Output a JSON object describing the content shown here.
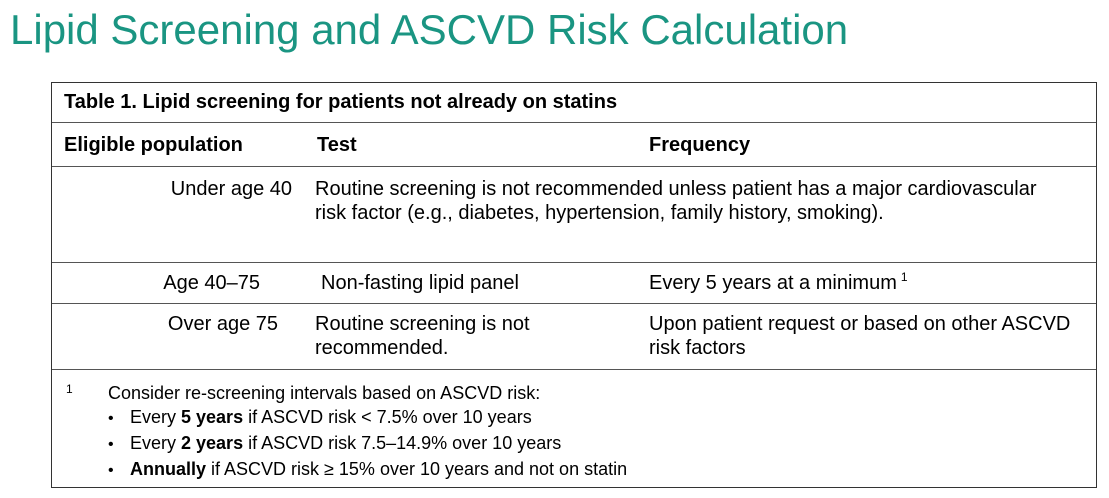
{
  "page": {
    "title": "Lipid Screening and ASCVD Risk Calculation",
    "title_color": "#1a9582"
  },
  "table": {
    "caption": "Table 1. Lipid screening for patients not already on statins",
    "headers": {
      "population": "Eligible population",
      "test": "Test",
      "frequency": "Frequency"
    },
    "rows": [
      {
        "population": "Under age 40",
        "test": "Routine screening is not recommended unless patient has a major cardiovascular risk factor (e.g., diabetes, hypertension, family history, smoking).",
        "frequency": ""
      },
      {
        "population": "Age 40–75",
        "test": "Non-fasting lipid panel",
        "frequency": "Every 5 years at a minimum",
        "frequency_note": "1"
      },
      {
        "population": "Over age 75",
        "test": "Routine screening is not recommended.",
        "frequency": "Upon patient request or based on other ASCVD risk factors"
      }
    ],
    "footnote": {
      "marker": "1",
      "intro": "Consider re-screening intervals based on ASCVD risk:",
      "bullet_symbol": "•",
      "items": [
        {
          "prefix": "Every ",
          "bold": "5 years",
          "suffix": " if ASCVD risk < 7.5% over 10 years"
        },
        {
          "prefix": "Every ",
          "bold": "2 years",
          "suffix": " if ASCVD risk 7.5–14.9% over 10 years"
        },
        {
          "prefix": "",
          "bold": "Annually",
          "suffix": " if ASCVD risk ≥ 15% over 10 years and not on statin"
        }
      ]
    }
  }
}
